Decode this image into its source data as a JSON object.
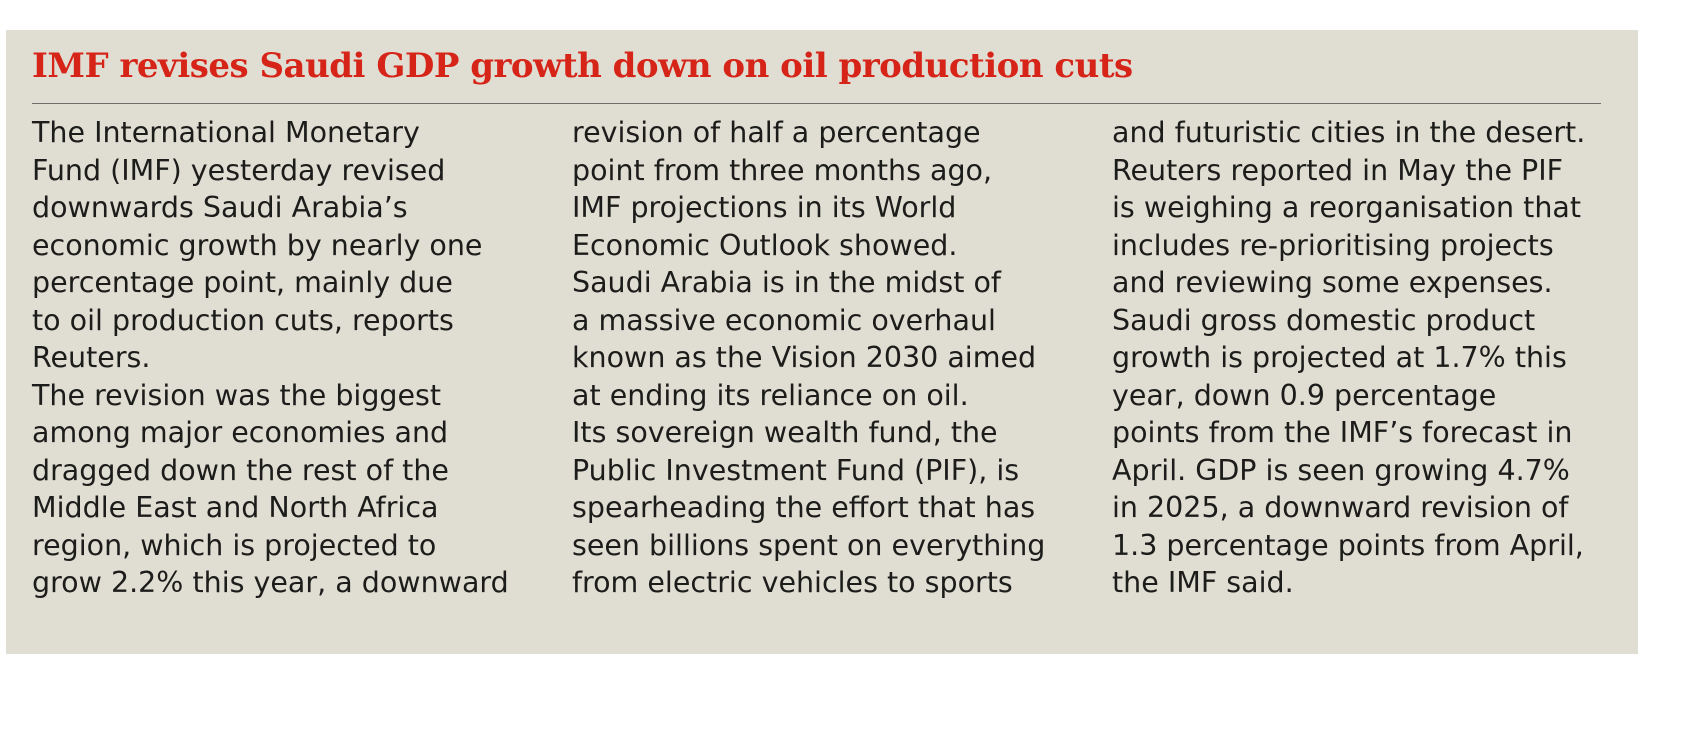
{
  "article": {
    "headline": "IMF revises Saudi GDP growth down on oil production cuts",
    "columns": [
      [
        "The International Monetary",
        "Fund (IMF) yesterday revised",
        "downwards Saudi Arabia’s",
        "economic growth by nearly one",
        "percentage point, mainly due",
        "to oil production cuts, reports",
        "Reuters.",
        "The revision was the biggest",
        "among major economies and",
        "dragged down the rest of the",
        "Middle East and North Africa",
        "region, which is projected to",
        "grow 2.2% this year, a downward"
      ],
      [
        "revision of half a percentage",
        "point from three months ago,",
        "IMF projections in its World",
        "Economic Outlook showed.",
        "Saudi Arabia is in the midst of",
        "a massive economic overhaul",
        "known as the Vision 2030 aimed",
        "at ending its reliance on oil.",
        "Its sovereign wealth fund, the",
        "Public Investment Fund (PIF), is",
        "spearheading the effort that has",
        "seen billions spent on everything",
        "from electric vehicles to sports"
      ],
      [
        "and futuristic cities in the desert.",
        "Reuters reported in May the PIF",
        "is weighing a reorganisation that",
        "includes re-prioritising projects",
        "and reviewing some expenses.",
        "Saudi gross domestic product",
        "growth is projected at 1.7% this",
        "year, down 0.9 percentage",
        "points from the IMF’s forecast in",
        "April. GDP is seen growing 4.7%",
        "in 2025, a downward revision of",
        "1.3 percentage points from April,",
        "the IMF said."
      ]
    ]
  },
  "colors": {
    "headline": "#d62418",
    "box_background": "#e0ded3",
    "body_text": "#1c1c1a",
    "rule": "#6f6e69"
  }
}
